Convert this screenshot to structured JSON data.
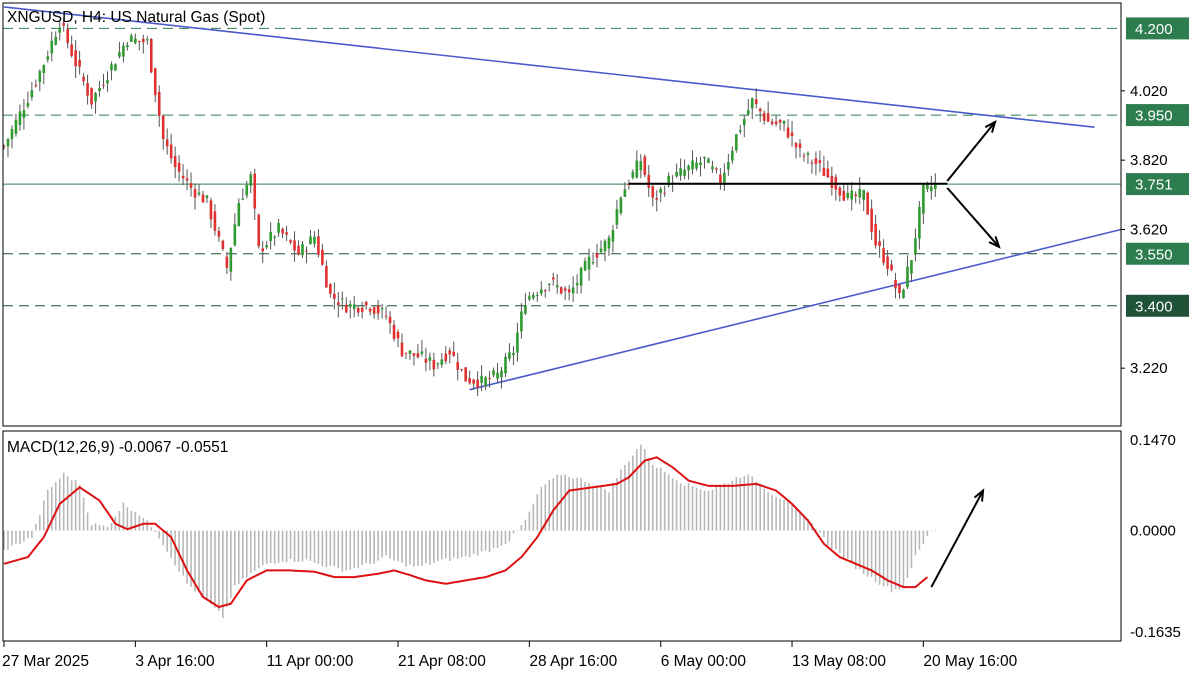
{
  "chart_title": "XNGUSD, H4:  US Natural Gas (Spot)",
  "colors": {
    "bull": "#2f9a2f",
    "bear": "#e03030",
    "wick": "#555555",
    "trendline": "#4a5ccc",
    "level_line": "#2e7d4f",
    "level_badge": "#2e7d4f",
    "level_badge_dark": "#1f5238",
    "grid": "#d6d6d6",
    "macd_line": "#dd1111",
    "macd_hist": "#b8b8b8",
    "neckline": "#000000",
    "arrows": "#000000"
  },
  "chart_data": [
    {
      "type": "candlestick",
      "title": "XNGUSD, H4:  US Natural Gas (Spot)",
      "ylim": [
        3.085,
        4.305
      ],
      "y_ticks": [
        "4.020",
        "3.820",
        "3.620",
        "3.220"
      ],
      "x_ticks": [
        "27 Mar 2025",
        "3 Apr 16:00",
        "11 Apr 00:00",
        "21 Apr 08:00",
        "28 Apr 16:00",
        "6 May 00:00",
        "13 May 08:00",
        "20 May 16:00"
      ],
      "x_tick_bar_index": [
        0,
        33,
        66,
        99,
        132,
        165,
        198,
        231
      ],
      "price_path_keypoints": [
        [
          0,
          3.86
        ],
        [
          6,
          4.0
        ],
        [
          10,
          4.1
        ],
        [
          14,
          4.22
        ],
        [
          18,
          4.1
        ],
        [
          22,
          3.99
        ],
        [
          26,
          4.07
        ],
        [
          31,
          4.17
        ],
        [
          36,
          4.16
        ],
        [
          40,
          3.88
        ],
        [
          43,
          3.8
        ],
        [
          47,
          3.74
        ],
        [
          51,
          3.7
        ],
        [
          56,
          3.51
        ],
        [
          59,
          3.7
        ],
        [
          62,
          3.77
        ],
        [
          64,
          3.56
        ],
        [
          69,
          3.62
        ],
        [
          74,
          3.55
        ],
        [
          78,
          3.6
        ],
        [
          82,
          3.43
        ],
        [
          86,
          3.4
        ],
        [
          92,
          3.4
        ],
        [
          96,
          3.37
        ],
        [
          100,
          3.27
        ],
        [
          105,
          3.25
        ],
        [
          108,
          3.23
        ],
        [
          112,
          3.27
        ],
        [
          116,
          3.19
        ],
        [
          120,
          3.18
        ],
        [
          124,
          3.2
        ],
        [
          128,
          3.27
        ],
        [
          131,
          3.42
        ],
        [
          137,
          3.47
        ],
        [
          142,
          3.43
        ],
        [
          147,
          3.53
        ],
        [
          152,
          3.59
        ],
        [
          155,
          3.72
        ],
        [
          160,
          3.82
        ],
        [
          163,
          3.7
        ],
        [
          167,
          3.76
        ],
        [
          171,
          3.79
        ],
        [
          176,
          3.82
        ],
        [
          180,
          3.76
        ],
        [
          184,
          3.89
        ],
        [
          188,
          3.99
        ],
        [
          192,
          3.93
        ],
        [
          196,
          3.92
        ],
        [
          200,
          3.84
        ],
        [
          204,
          3.81
        ],
        [
          208,
          3.76
        ],
        [
          212,
          3.71
        ],
        [
          216,
          3.72
        ],
        [
          219,
          3.58
        ],
        [
          222,
          3.52
        ],
        [
          225,
          3.42
        ],
        [
          228,
          3.54
        ],
        [
          231,
          3.73
        ],
        [
          234,
          3.75
        ]
      ],
      "horizontal_levels": [
        {
          "value": 4.2,
          "label": "4.200",
          "style": "dashed"
        },
        {
          "value": 3.95,
          "label": "3.950",
          "style": "dashed"
        },
        {
          "value": 3.751,
          "label": "3.751",
          "style": "solid"
        },
        {
          "value": 3.55,
          "label": "3.550",
          "style": "dashed"
        },
        {
          "value": 3.4,
          "label": "3.400",
          "style": "dashed"
        }
      ],
      "trendlines": [
        {
          "name": "descending resistance",
          "from": [
            0,
            4.262
          ],
          "to": [
            274,
            3.915
          ]
        },
        {
          "name": "ascending support",
          "from": [
            117,
            3.158
          ],
          "to": [
            290,
            3.62
          ]
        }
      ],
      "neckline": {
        "from": [
          157,
          3.752
        ],
        "to": [
          237,
          3.752
        ]
      },
      "projection_arrows": [
        {
          "direction": "up",
          "from": [
            237,
            3.76
          ],
          "to": [
            249,
            3.93
          ]
        },
        {
          "direction": "down",
          "from": [
            237,
            3.74
          ],
          "to": [
            250,
            3.57
          ]
        }
      ],
      "grid": false
    },
    {
      "type": "line",
      "title": "MACD(12,26,9) -0.0067 -0.0551",
      "indicator": "MACD(12,26,9)",
      "readout_values": [
        "-0.0067",
        "-0.0551"
      ],
      "ylim": [
        -0.1635,
        0.147
      ],
      "y_ticks": [
        "0.1470",
        "0.0000",
        "-0.1635"
      ],
      "series": [
        {
          "values_role": "histogram",
          "keypoints": [
            [
              0,
              -0.03
            ],
            [
              7,
              -0.01
            ],
            [
              11,
              0.06
            ],
            [
              15,
              0.085
            ],
            [
              19,
              0.07
            ],
            [
              22,
              0.01
            ],
            [
              26,
              0.005
            ],
            [
              30,
              0.04
            ],
            [
              34,
              0.025
            ],
            [
              38,
              0.0
            ],
            [
              42,
              -0.04
            ],
            [
              46,
              -0.08
            ],
            [
              50,
              -0.1
            ],
            [
              55,
              -0.13
            ],
            [
              58,
              -0.085
            ],
            [
              62,
              -0.065
            ],
            [
              66,
              -0.05
            ],
            [
              70,
              -0.045
            ],
            [
              76,
              -0.045
            ],
            [
              82,
              -0.055
            ],
            [
              86,
              -0.06
            ],
            [
              92,
              -0.05
            ],
            [
              96,
              -0.04
            ],
            [
              100,
              -0.05
            ],
            [
              104,
              -0.055
            ],
            [
              110,
              -0.045
            ],
            [
              116,
              -0.04
            ],
            [
              122,
              -0.03
            ],
            [
              127,
              -0.015
            ],
            [
              131,
              0.015
            ],
            [
              135,
              0.065
            ],
            [
              140,
              0.085
            ],
            [
              146,
              0.075
            ],
            [
              152,
              0.06
            ],
            [
              155,
              0.09
            ],
            [
              160,
              0.13
            ],
            [
              163,
              0.1
            ],
            [
              167,
              0.085
            ],
            [
              171,
              0.07
            ],
            [
              177,
              0.06
            ],
            [
              181,
              0.07
            ],
            [
              186,
              0.085
            ],
            [
              189,
              0.075
            ],
            [
              193,
              0.055
            ],
            [
              197,
              0.045
            ],
            [
              200,
              0.025
            ],
            [
              204,
              0.005
            ],
            [
              207,
              -0.02
            ],
            [
              211,
              -0.04
            ],
            [
              215,
              -0.06
            ],
            [
              219,
              -0.075
            ],
            [
              223,
              -0.09
            ],
            [
              226,
              -0.085
            ],
            [
              229,
              -0.04
            ],
            [
              233,
              0.0
            ]
          ]
        },
        {
          "values_role": "signal",
          "keypoints": [
            [
              0,
              -0.05
            ],
            [
              6,
              -0.04
            ],
            [
              10,
              -0.01
            ],
            [
              14,
              0.04
            ],
            [
              19,
              0.065
            ],
            [
              24,
              0.045
            ],
            [
              28,
              0.01
            ],
            [
              31,
              0.002
            ],
            [
              35,
              0.01
            ],
            [
              38,
              0.01
            ],
            [
              42,
              -0.01
            ],
            [
              46,
              -0.06
            ],
            [
              50,
              -0.1
            ],
            [
              54,
              -0.115
            ],
            [
              57,
              -0.11
            ],
            [
              61,
              -0.075
            ],
            [
              66,
              -0.06
            ],
            [
              72,
              -0.06
            ],
            [
              78,
              -0.062
            ],
            [
              83,
              -0.07
            ],
            [
              88,
              -0.07
            ],
            [
              94,
              -0.065
            ],
            [
              98,
              -0.06
            ],
            [
              102,
              -0.067
            ],
            [
              106,
              -0.075
            ],
            [
              111,
              -0.08
            ],
            [
              116,
              -0.075
            ],
            [
              121,
              -0.07
            ],
            [
              126,
              -0.06
            ],
            [
              130,
              -0.04
            ],
            [
              134,
              -0.01
            ],
            [
              138,
              0.03
            ],
            [
              142,
              0.06
            ],
            [
              148,
              0.065
            ],
            [
              154,
              0.07
            ],
            [
              157,
              0.08
            ],
            [
              161,
              0.105
            ],
            [
              164,
              0.11
            ],
            [
              168,
              0.095
            ],
            [
              172,
              0.075
            ],
            [
              177,
              0.067
            ],
            [
              183,
              0.067
            ],
            [
              189,
              0.07
            ],
            [
              194,
              0.06
            ],
            [
              198,
              0.04
            ],
            [
              202,
              0.015
            ],
            [
              206,
              -0.02
            ],
            [
              210,
              -0.04
            ],
            [
              214,
              -0.05
            ],
            [
              218,
              -0.06
            ],
            [
              222,
              -0.075
            ],
            [
              226,
              -0.085
            ],
            [
              229,
              -0.085
            ],
            [
              232,
              -0.07
            ]
          ]
        }
      ],
      "projection_arrows": [
        {
          "direction": "up",
          "from": [
            233,
            -0.085
          ],
          "to": [
            246,
            0.06
          ]
        }
      ]
    }
  ]
}
